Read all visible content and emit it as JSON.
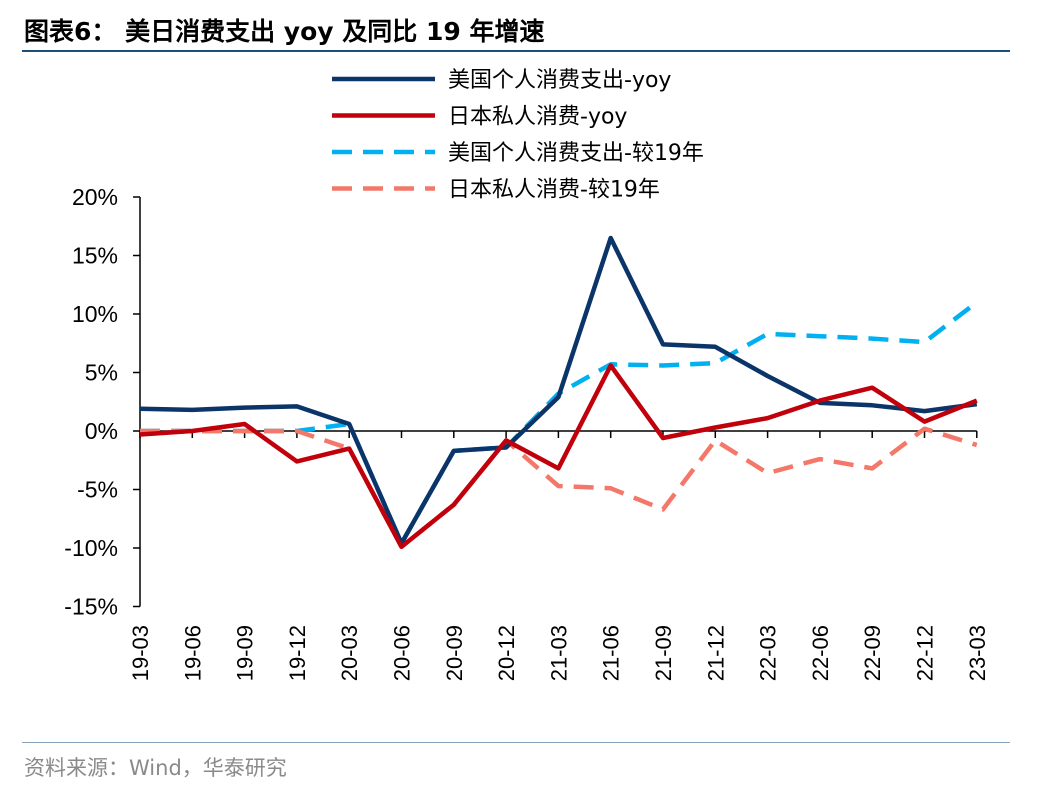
{
  "header": {
    "title": "图表6：  美日消费支出 yoy 及同比 19 年增速"
  },
  "footer": {
    "source": "资料来源：Wind，华泰研究"
  },
  "chart_data": {
    "type": "line",
    "title": "美日消费支出 yoy 及同比 19 年增速",
    "xlabel": "",
    "ylabel": "",
    "ylim": [
      -15,
      20
    ],
    "yticks": [
      -15,
      -10,
      -5,
      0,
      5,
      10,
      15,
      20
    ],
    "ytick_labels": [
      "-15%",
      "-10%",
      "-5%",
      "0%",
      "5%",
      "10%",
      "15%",
      "20%"
    ],
    "categories": [
      "19-03",
      "19-06",
      "19-09",
      "19-12",
      "20-03",
      "20-06",
      "20-09",
      "20-12",
      "21-03",
      "21-06",
      "21-09",
      "21-12",
      "22-03",
      "22-06",
      "22-09",
      "22-12",
      "23-03"
    ],
    "legend_position": "top-center",
    "series": [
      {
        "name": "美国个人消费支出-yoy",
        "color": "#0b3469",
        "style": "solid",
        "values": [
          1.9,
          1.8,
          2.0,
          2.1,
          0.6,
          -9.6,
          -1.7,
          -1.4,
          2.9,
          16.5,
          7.4,
          7.2,
          4.7,
          2.4,
          2.2,
          1.7,
          2.3
        ]
      },
      {
        "name": "日本私人消费-yoy",
        "color": "#c0000b",
        "style": "solid",
        "values": [
          -0.3,
          0.0,
          0.6,
          -2.6,
          -1.5,
          -9.9,
          -6.3,
          -0.8,
          -3.2,
          5.6,
          -0.6,
          0.3,
          1.1,
          2.6,
          3.7,
          0.8,
          2.6
        ]
      },
      {
        "name": "美国个人消费支出-较19年",
        "color": "#00b0f0",
        "style": "dashed",
        "values": [
          0.0,
          0.0,
          0.0,
          0.0,
          0.6,
          -9.6,
          -1.7,
          -1.4,
          3.2,
          5.7,
          5.6,
          5.8,
          8.3,
          8.1,
          7.9,
          7.6,
          11.0
        ]
      },
      {
        "name": "日本私人消费-较19年",
        "color": "#f4786a",
        "style": "dashed",
        "values": [
          0.0,
          0.0,
          0.0,
          0.0,
          -1.5,
          -9.9,
          -6.3,
          -0.8,
          -4.7,
          -4.9,
          -6.7,
          -0.8,
          -3.6,
          -2.4,
          -3.2,
          0.2,
          -1.2
        ]
      }
    ]
  }
}
